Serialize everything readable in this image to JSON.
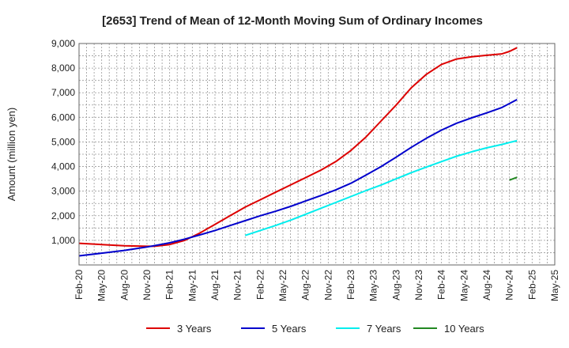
{
  "chart_data": {
    "type": "line",
    "title": "[2653]  Trend of Mean of 12-Month Moving Sum of Ordinary Incomes",
    "xlabel": "",
    "ylabel": "Amount (million yen)",
    "ylim": [
      0,
      9000
    ],
    "xlim_months": [
      0,
      63
    ],
    "grid": true,
    "legend_position": "bottom",
    "x_tick_labels": [
      "Feb-20",
      "May-20",
      "Aug-20",
      "Nov-20",
      "Feb-21",
      "May-21",
      "Aug-21",
      "Nov-21",
      "Feb-22",
      "May-22",
      "Aug-22",
      "Nov-22",
      "Feb-23",
      "May-23",
      "Aug-23",
      "Nov-23",
      "Feb-24",
      "May-24",
      "Aug-24",
      "Nov-24",
      "Feb-25",
      "May-25"
    ],
    "y_ticks": [
      1000,
      2000,
      3000,
      4000,
      5000,
      6000,
      7000,
      8000,
      9000
    ],
    "y_tick_labels": [
      "1,000",
      "2,000",
      "3,000",
      "4,000",
      "5,000",
      "6,000",
      "7,000",
      "8,000",
      "9,000"
    ],
    "series": [
      {
        "name": "3 Years",
        "color": "#dd0000",
        "points": [
          [
            0,
            880
          ],
          [
            3,
            830
          ],
          [
            6,
            780
          ],
          [
            9,
            760
          ],
          [
            10,
            760
          ],
          [
            12,
            830
          ],
          [
            14,
            1000
          ],
          [
            16,
            1300
          ],
          [
            18,
            1650
          ],
          [
            20,
            2000
          ],
          [
            22,
            2350
          ],
          [
            24,
            2650
          ],
          [
            26,
            2950
          ],
          [
            28,
            3250
          ],
          [
            30,
            3550
          ],
          [
            32,
            3850
          ],
          [
            34,
            4200
          ],
          [
            36,
            4650
          ],
          [
            38,
            5200
          ],
          [
            40,
            5850
          ],
          [
            42,
            6500
          ],
          [
            44,
            7200
          ],
          [
            46,
            7750
          ],
          [
            48,
            8150
          ],
          [
            50,
            8370
          ],
          [
            52,
            8460
          ],
          [
            54,
            8520
          ],
          [
            56,
            8580
          ],
          [
            57,
            8680
          ],
          [
            58,
            8830
          ]
        ]
      },
      {
        "name": "5 Years",
        "color": "#0000cc",
        "points": [
          [
            0,
            370
          ],
          [
            3,
            480
          ],
          [
            6,
            590
          ],
          [
            9,
            730
          ],
          [
            12,
            900
          ],
          [
            14,
            1050
          ],
          [
            16,
            1220
          ],
          [
            18,
            1400
          ],
          [
            20,
            1600
          ],
          [
            22,
            1800
          ],
          [
            24,
            2000
          ],
          [
            26,
            2180
          ],
          [
            28,
            2380
          ],
          [
            30,
            2600
          ],
          [
            32,
            2820
          ],
          [
            34,
            3050
          ],
          [
            36,
            3320
          ],
          [
            38,
            3650
          ],
          [
            40,
            4000
          ],
          [
            42,
            4380
          ],
          [
            44,
            4780
          ],
          [
            46,
            5150
          ],
          [
            48,
            5480
          ],
          [
            50,
            5760
          ],
          [
            52,
            5980
          ],
          [
            54,
            6180
          ],
          [
            56,
            6400
          ],
          [
            57,
            6560
          ],
          [
            58,
            6720
          ]
        ]
      },
      {
        "name": "7 Years",
        "color": "#00eeee",
        "points": [
          [
            22,
            1200
          ],
          [
            24,
            1400
          ],
          [
            26,
            1600
          ],
          [
            28,
            1820
          ],
          [
            30,
            2060
          ],
          [
            32,
            2300
          ],
          [
            34,
            2540
          ],
          [
            36,
            2780
          ],
          [
            38,
            3020
          ],
          [
            40,
            3250
          ],
          [
            42,
            3500
          ],
          [
            44,
            3750
          ],
          [
            46,
            3980
          ],
          [
            48,
            4200
          ],
          [
            50,
            4420
          ],
          [
            52,
            4600
          ],
          [
            54,
            4760
          ],
          [
            56,
            4900
          ],
          [
            57,
            4980
          ],
          [
            58,
            5050
          ]
        ]
      },
      {
        "name": "10 Years",
        "color": "#228822",
        "points": [
          [
            57,
            3450
          ],
          [
            58,
            3560
          ]
        ]
      }
    ]
  }
}
